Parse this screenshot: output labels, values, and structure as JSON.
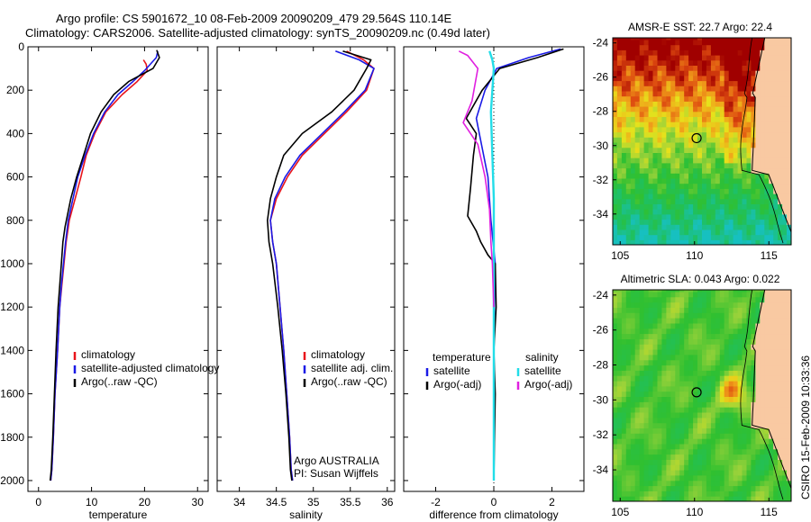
{
  "header": {
    "title_line1": "Argo profile: CS 5901672_10 08-Feb-2009 20090209_479 29.564S 110.14E",
    "title_line2": "Climatology: CARS2006. Satellite-adjusted climatology: synTS_20090209.nc (0.49d later)"
  },
  "colors": {
    "climatology": "#e8141b",
    "satellite": "#1a1ae6",
    "argo": "#000000",
    "salinity_satellite": "#22dde8",
    "salinity_argo": "#e020e0",
    "land": "#f9c9a2"
  },
  "chart_data": [
    {
      "type": "line",
      "name": "temperature-profile",
      "xlabel": "temperature",
      "ylabel": "",
      "xlim": [
        -2,
        32
      ],
      "ylim": [
        0,
        2050
      ],
      "y_reversed": true,
      "xticks": [
        0,
        10,
        20,
        30
      ],
      "yticks": [
        0,
        200,
        400,
        600,
        800,
        1000,
        1200,
        1400,
        1600,
        1800,
        2000
      ],
      "legend": {
        "placement": "center-left",
        "entries": [
          "climatology",
          "satellite-adjusted climatology",
          "Argo(..raw -QC)"
        ]
      },
      "series": [
        {
          "name": "climatology",
          "color": "#e8141b",
          "x": [
            19.8,
            20.3,
            20.5,
            18.6,
            15.8,
            12.7,
            10.6,
            9.0,
            8.0,
            6.9,
            5.8,
            5.2,
            4.8,
            4.4,
            4.0,
            3.6,
            3.1,
            2.8,
            2.5,
            2.3
          ],
          "y": [
            60,
            80,
            110,
            160,
            220,
            300,
            400,
            500,
            600,
            700,
            800,
            900,
            1000,
            1100,
            1200,
            1400,
            1600,
            1800,
            1950,
            2000
          ]
        },
        {
          "name": "satellite-adjusted climatology",
          "color": "#1a1ae6",
          "x": [
            22.5,
            22.2,
            20.0,
            17.8,
            15.0,
            12.5,
            10.4,
            8.8,
            7.4,
            6.5,
            5.6,
            5.1,
            4.7,
            4.3,
            4.0,
            3.6,
            3.1,
            2.8,
            2.5,
            2.3
          ],
          "y": [
            20,
            50,
            110,
            160,
            220,
            300,
            400,
            500,
            600,
            700,
            800,
            900,
            1000,
            1100,
            1200,
            1400,
            1600,
            1800,
            1950,
            2000
          ]
        },
        {
          "name": "Argo(..raw -QC)",
          "color": "#000000",
          "x": [
            22.3,
            22.8,
            21.6,
            17.0,
            14.2,
            11.8,
            9.8,
            8.5,
            7.2,
            6.1,
            5.0,
            4.6,
            4.3,
            4.0,
            3.7,
            3.3,
            3.0,
            2.7,
            2.4,
            2.2
          ],
          "y": [
            15,
            50,
            100,
            160,
            220,
            300,
            400,
            500,
            600,
            700,
            830,
            900,
            1000,
            1100,
            1200,
            1400,
            1600,
            1800,
            1950,
            2000
          ]
        }
      ]
    },
    {
      "type": "line",
      "name": "salinity-profile",
      "xlabel": "salinity",
      "xlim": [
        33.7,
        36.1
      ],
      "ylim": [
        0,
        2050
      ],
      "y_reversed": true,
      "xticks": [
        34,
        34.5,
        35,
        35.5,
        36
      ],
      "legend": {
        "placement": "center-right",
        "entries": [
          "climatology",
          "satellite adj. clim.",
          "Argo(..raw -QC)"
        ]
      },
      "annotations": [
        "Argo AUSTRALIA",
        "PI: Susan Wijffels"
      ],
      "series": [
        {
          "name": "climatology",
          "color": "#e8141b",
          "x": [
            35.45,
            35.68,
            35.82,
            35.72,
            35.45,
            35.15,
            34.85,
            34.65,
            34.5,
            34.42,
            34.45,
            34.5,
            34.55,
            34.6,
            34.64,
            34.68,
            34.7,
            34.72
          ],
          "y": [
            20,
            60,
            100,
            200,
            300,
            400,
            500,
            600,
            700,
            800,
            900,
            1000,
            1200,
            1400,
            1600,
            1800,
            1950,
            2000
          ]
        },
        {
          "name": "satellite adj. clim.",
          "color": "#1a1ae6",
          "x": [
            35.3,
            35.62,
            35.82,
            35.7,
            35.42,
            35.12,
            34.82,
            34.62,
            34.48,
            34.42,
            34.45,
            34.5,
            34.55,
            34.6,
            34.64,
            34.68,
            34.7,
            34.72
          ],
          "y": [
            20,
            60,
            100,
            200,
            300,
            400,
            500,
            600,
            700,
            800,
            900,
            1000,
            1200,
            1400,
            1600,
            1800,
            1950,
            2000
          ]
        },
        {
          "name": "Argo(..raw -QC)",
          "color": "#000000",
          "x": [
            35.4,
            35.78,
            35.72,
            35.55,
            35.25,
            34.85,
            34.6,
            34.5,
            34.42,
            34.38,
            34.4,
            34.45,
            34.52,
            34.58,
            34.63,
            34.67,
            34.69,
            34.71
          ],
          "y": [
            20,
            60,
            100,
            200,
            300,
            400,
            500,
            600,
            700,
            800,
            900,
            1000,
            1200,
            1400,
            1600,
            1800,
            1950,
            2000
          ]
        }
      ]
    },
    {
      "type": "line",
      "name": "difference-profile",
      "xlabel": "difference from climatology",
      "xlim": [
        -3.1,
        3.1
      ],
      "ylim": [
        0,
        2050
      ],
      "y_reversed": true,
      "xticks": [
        -2,
        0,
        2
      ],
      "legend": {
        "placement": "center",
        "groups": [
          {
            "title": "temperature",
            "entries": [
              "satellite",
              "Argo(-adj)"
            ]
          },
          {
            "title": "salinity",
            "entries": [
              "satellite",
              "Argo(-adj)"
            ]
          }
        ]
      },
      "series": [
        {
          "name": "temperature satellite",
          "color": "#1a1ae6",
          "x": [
            2.3,
            1.2,
            0.1,
            -0.3,
            -0.6,
            -0.5,
            -0.35,
            -0.2,
            -0.1,
            0.05,
            0.02,
            0.0,
            0.0,
            0.0,
            0.0
          ],
          "y": [
            10,
            50,
            100,
            200,
            330,
            400,
            500,
            600,
            800,
            1000,
            1200,
            1400,
            1600,
            1800,
            2000
          ]
        },
        {
          "name": "temperature Argo(-adj)",
          "color": "#000000",
          "x": [
            2.4,
            1.5,
            0.2,
            -0.4,
            -0.95,
            -0.6,
            -0.7,
            -0.8,
            -0.9,
            -0.6,
            -0.45,
            -0.2,
            0.05,
            0.08,
            0.0,
            0.05,
            0.0
          ],
          "y": [
            10,
            50,
            100,
            200,
            330,
            400,
            500,
            650,
            780,
            850,
            900,
            960,
            1000,
            1200,
            1400,
            1600,
            2000
          ]
        },
        {
          "name": "salinity satellite",
          "color": "#22dde8",
          "x": [
            -0.15,
            -0.05,
            0.0,
            -0.05,
            -0.1,
            -0.05,
            0.0,
            0.0,
            0.0,
            0.0,
            0.0,
            0.0
          ],
          "y": [
            20,
            60,
            100,
            200,
            300,
            500,
            700,
            1000,
            1300,
            1600,
            1800,
            2000
          ]
        },
        {
          "name": "salinity Argo(-adj)",
          "color": "#e020e0",
          "x": [
            -1.2,
            -0.9,
            -0.55,
            -0.75,
            -1.05,
            -0.55,
            -0.3,
            -0.15,
            -0.1,
            -0.05,
            0.0
          ],
          "y": [
            20,
            40,
            100,
            250,
            350,
            450,
            600,
            750,
            900,
            1000,
            1200
          ]
        }
      ]
    },
    {
      "type": "heatmap",
      "name": "sst-map",
      "title": "AMSR-E SST: 22.7 Argo: 22.4",
      "xlim": [
        104.5,
        116.5
      ],
      "ylim": [
        -35.8,
        -23.7
      ],
      "xticks": [
        105,
        110,
        115
      ],
      "yticks": [
        -24,
        -26,
        -28,
        -30,
        -32,
        -34
      ],
      "marker": {
        "lon": 110.14,
        "lat": -29.564
      }
    },
    {
      "type": "heatmap",
      "name": "sla-map",
      "title": "Altimetric SLA: 0.043 Argo: 0.022",
      "xlim": [
        104.5,
        116.5
      ],
      "ylim": [
        -35.8,
        -23.7
      ],
      "xticks": [
        105,
        110,
        115
      ],
      "yticks": [
        -24,
        -26,
        -28,
        -30,
        -32,
        -34
      ],
      "marker": {
        "lon": 110.14,
        "lat": -29.564
      }
    }
  ],
  "footer": {
    "credit": "CSIRO 15-Feb-2009 10:33:36"
  }
}
